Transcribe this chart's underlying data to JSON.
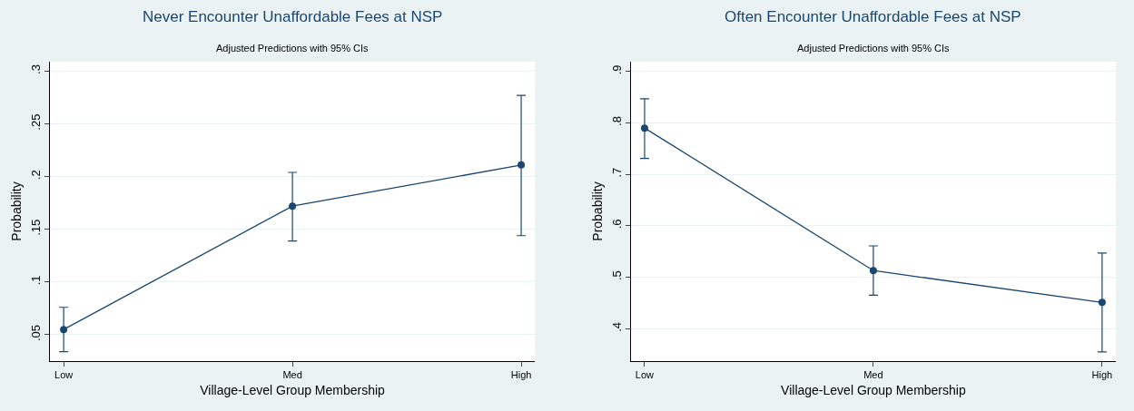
{
  "chart_data": [
    {
      "type": "line",
      "title": "Never Encounter Unaffordable Fees at NSP",
      "subtitle": "Adjusted Predictions with 95% CIs",
      "xlabel": "Village-Level Group Membership",
      "ylabel": "Probability",
      "categories": [
        "Low",
        "Med",
        "High"
      ],
      "series": [
        {
          "color": "#1a476f",
          "values": [
            0.055,
            0.172,
            0.211
          ],
          "errors": [
            [
              0.034,
              0.076
            ],
            [
              0.139,
              0.204
            ],
            [
              0.144,
              0.277
            ]
          ]
        }
      ],
      "ylim": [
        0.025,
        0.309
      ],
      "yticks": [
        {
          "value": 0.05,
          "label": ".05"
        },
        {
          "value": 0.1,
          "label": ".1"
        },
        {
          "value": 0.15,
          "label": ".15"
        },
        {
          "value": 0.2,
          "label": ".2"
        },
        {
          "value": 0.25,
          "label": ".25"
        },
        {
          "value": 0.3,
          "label": ".3"
        }
      ],
      "grid": "y",
      "marker": "circle",
      "line_style": "solid"
    },
    {
      "type": "line",
      "title": "Often Encounter Unaffordable Fees at NSP",
      "subtitle": "Adjusted Predictions with 95% CIs",
      "xlabel": "Village-Level Group Membership",
      "ylabel": "Probability",
      "categories": [
        "Low",
        "Med",
        "High"
      ],
      "series": [
        {
          "color": "#1a476f",
          "values": [
            0.79,
            0.513,
            0.451
          ],
          "errors": [
            [
              0.731,
              0.847
            ],
            [
              0.465,
              0.561
            ],
            [
              0.355,
              0.547
            ]
          ]
        }
      ],
      "ylim": [
        0.337,
        0.919
      ],
      "yticks": [
        {
          "value": 0.4,
          "label": ".4"
        },
        {
          "value": 0.5,
          "label": ".5"
        },
        {
          "value": 0.6,
          "label": ".6"
        },
        {
          "value": 0.7,
          "label": ".7"
        },
        {
          "value": 0.8,
          "label": ".8"
        },
        {
          "value": 0.9,
          "label": ".9"
        }
      ],
      "grid": "y",
      "marker": "circle",
      "line_style": "solid"
    }
  ]
}
